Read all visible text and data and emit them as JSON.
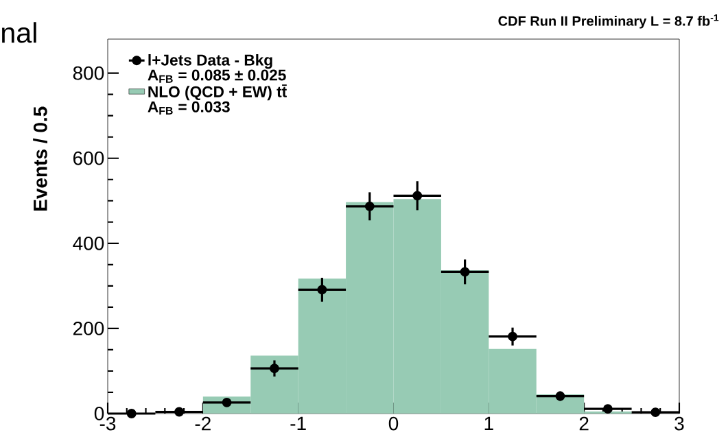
{
  "chart_data": {
    "type": "histogram",
    "title": "CDF Run II Preliminary L = 8.7 fb$^{-1}$",
    "ylabel": "Events / 0.5",
    "bins": [
      -3,
      -2.5,
      -2,
      -1.5,
      -1,
      -0.5,
      0,
      0.5,
      1,
      1.5,
      2,
      2.5,
      3
    ],
    "series": [
      {
        "name": "l+Jets Data - Bkg",
        "type": "scatter",
        "color": "#000000",
        "marker": "circle",
        "x": [
          -2.75,
          -2.25,
          -1.75,
          -1.25,
          -0.75,
          -0.25,
          0.25,
          0.75,
          1.25,
          1.75,
          2.25,
          2.75
        ],
        "values": [
          0,
          4,
          26,
          106,
          291,
          487,
          512,
          333,
          181,
          41,
          11,
          3
        ],
        "errors": [
          null,
          null,
          7,
          19,
          28,
          33,
          34,
          29,
          21,
          11,
          null,
          null
        ],
        "xerrors": [
          0.25,
          0.25,
          0.25,
          0.25,
          0.25,
          0.25,
          0.25,
          0.25,
          0.25,
          0.25,
          0.25,
          0.25
        ]
      },
      {
        "name": "NLO (QCD + EW) tt̄",
        "color": "#97cbb4",
        "values": [
          0,
          0,
          40,
          136,
          317,
          497,
          504,
          337,
          152,
          45,
          5,
          0
        ]
      }
    ],
    "annotations": [
      "A$_{FB}$ = 0.085 ± 0.025",
      "A$_{FB}$ = 0.033",
      "nal"
    ],
    "xlim": [
      -3,
      3
    ],
    "ylim": [
      0,
      880
    ],
    "xticks": [
      -3,
      -2,
      -1,
      0,
      1,
      2,
      3
    ],
    "yticks": [
      0,
      200,
      400,
      600,
      800
    ],
    "legend": "top left"
  }
}
